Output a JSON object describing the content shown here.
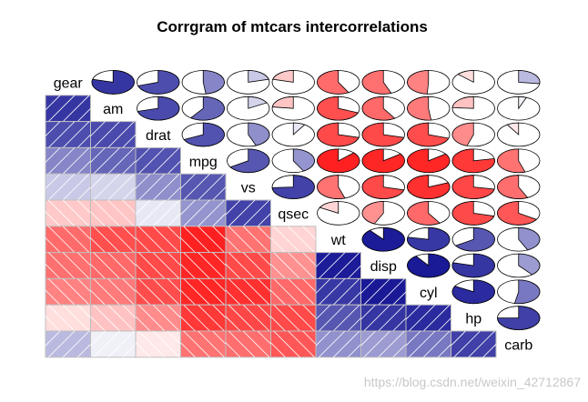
{
  "chart_data": {
    "type": "heatmap",
    "title": "Corrgram of mtcars intercorrelations",
    "variables": [
      "gear",
      "am",
      "drat",
      "mpg",
      "vs",
      "qsec",
      "wt",
      "disp",
      "cyl",
      "hp",
      "carb"
    ],
    "lower_panel": "shade",
    "upper_panel": "pie",
    "value_range": [
      -1,
      1
    ],
    "correlations": [
      [
        1.0,
        0.79,
        0.7,
        0.48,
        0.21,
        -0.21,
        -0.58,
        -0.56,
        -0.49,
        -0.13,
        0.27
      ],
      [
        0.79,
        1.0,
        0.71,
        0.6,
        0.17,
        -0.23,
        -0.69,
        -0.59,
        -0.52,
        -0.24,
        0.06
      ],
      [
        0.7,
        0.71,
        1.0,
        0.68,
        0.44,
        0.09,
        -0.71,
        -0.71,
        -0.7,
        -0.45,
        -0.09
      ],
      [
        0.48,
        0.6,
        0.68,
        1.0,
        0.66,
        0.42,
        -0.87,
        -0.85,
        -0.85,
        -0.78,
        -0.55
      ],
      [
        0.21,
        0.17,
        0.44,
        0.66,
        1.0,
        0.74,
        -0.55,
        -0.71,
        -0.81,
        -0.72,
        -0.57
      ],
      [
        -0.21,
        -0.23,
        0.09,
        0.42,
        0.74,
        1.0,
        -0.17,
        -0.43,
        -0.59,
        -0.71,
        -0.66
      ],
      [
        -0.58,
        -0.69,
        -0.71,
        -0.87,
        -0.55,
        -0.17,
        1.0,
        0.89,
        0.78,
        0.66,
        0.43
      ],
      [
        -0.56,
        -0.59,
        -0.71,
        -0.85,
        -0.71,
        -0.43,
        0.89,
        1.0,
        0.9,
        0.79,
        0.39
      ],
      [
        -0.49,
        -0.52,
        -0.7,
        -0.85,
        -0.81,
        -0.59,
        0.78,
        0.9,
        1.0,
        0.83,
        0.53
      ],
      [
        -0.13,
        -0.24,
        -0.45,
        -0.78,
        -0.72,
        -0.71,
        0.66,
        0.79,
        0.83,
        1.0,
        0.75
      ],
      [
        0.27,
        0.06,
        -0.09,
        -0.55,
        -0.57,
        -0.66,
        0.43,
        0.39,
        0.53,
        0.75,
        1.0
      ]
    ],
    "colors": {
      "positive": "#00008b",
      "negative": "#ff0000",
      "neutral": "#ffffff",
      "grid": "#bebebe",
      "hatch": "#ffffff",
      "outline": "#000000"
    }
  },
  "watermark": "https://blog.csdn.net/weixin_42712867"
}
